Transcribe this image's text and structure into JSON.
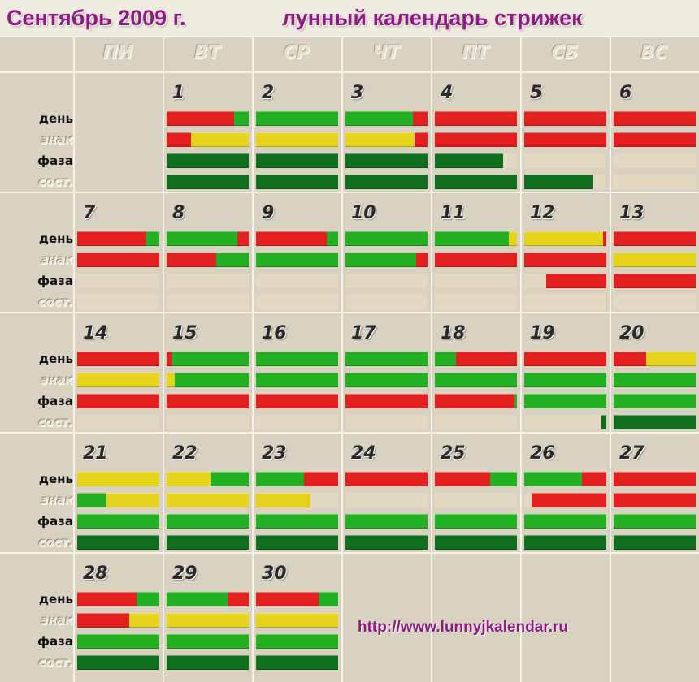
{
  "title": {
    "month": "Сентябрь 2009 г.",
    "subtitle": "лунный календарь стрижек"
  },
  "weekdays": [
    "ПН",
    "ВТ",
    "СР",
    "ЧТ",
    "ПТ",
    "СБ",
    "ВС"
  ],
  "row_labels": {
    "day": "день",
    "sign": "знак",
    "phase": "фаза",
    "state": "сост."
  },
  "colors": {
    "red": "#e32020",
    "yellow": "#e6d41c",
    "green": "#23b023",
    "dgreen": "#106f1f",
    "beige": "#e3d9c3"
  },
  "weeks": [
    {
      "days": [
        null,
        {
          "num": "1",
          "day": [
            [
              "red",
              0.82
            ],
            [
              "green",
              0.18
            ]
          ],
          "sign": [
            [
              "red",
              0.3
            ],
            [
              "yellow",
              0.7
            ]
          ],
          "phase": [
            [
              "dgreen",
              1
            ]
          ],
          "state": [
            [
              "dgreen",
              1
            ]
          ]
        },
        {
          "num": "2",
          "day": [
            [
              "green",
              1
            ]
          ],
          "sign": [
            [
              "yellow",
              1
            ]
          ],
          "phase": [
            [
              "dgreen",
              1
            ]
          ],
          "state": [
            [
              "dgreen",
              1
            ]
          ]
        },
        {
          "num": "3",
          "day": [
            [
              "green",
              0.82
            ],
            [
              "red",
              0.18
            ]
          ],
          "sign": [
            [
              "yellow",
              0.84
            ],
            [
              "red",
              0.16
            ]
          ],
          "phase": [
            [
              "dgreen",
              1
            ]
          ],
          "state": [
            [
              "dgreen",
              1
            ]
          ]
        },
        {
          "num": "4",
          "day": [
            [
              "red",
              1
            ]
          ],
          "sign": [
            [
              "red",
              1
            ]
          ],
          "phase": [
            [
              "dgreen",
              0.83
            ],
            [
              "beige",
              0.17
            ]
          ],
          "state": [
            [
              "dgreen",
              1
            ]
          ]
        },
        {
          "num": "5",
          "day": [
            [
              "red",
              1
            ]
          ],
          "sign": [
            [
              "red",
              1
            ]
          ],
          "phase": [
            [
              "beige",
              1
            ]
          ],
          "state": [
            [
              "dgreen",
              0.83
            ],
            [
              "beige",
              0.17
            ]
          ]
        },
        {
          "num": "6",
          "day": [
            [
              "red",
              1
            ]
          ],
          "sign": [
            [
              "red",
              1
            ]
          ],
          "phase": [
            [
              "beige",
              1
            ]
          ],
          "state": [
            [
              "beige",
              1
            ]
          ]
        }
      ]
    },
    {
      "days": [
        {
          "num": "7",
          "day": [
            [
              "red",
              0.84
            ],
            [
              "green",
              0.16
            ]
          ],
          "sign": [
            [
              "red",
              1
            ]
          ],
          "phase": [
            [
              "beige",
              1
            ]
          ],
          "state": [
            [
              "beige",
              1
            ]
          ]
        },
        {
          "num": "8",
          "day": [
            [
              "green",
              0.86
            ],
            [
              "red",
              0.14
            ]
          ],
          "sign": [
            [
              "red",
              0.6
            ],
            [
              "green",
              0.4
            ]
          ],
          "phase": [
            [
              "beige",
              1
            ]
          ],
          "state": [
            [
              "beige",
              1
            ]
          ]
        },
        {
          "num": "9",
          "day": [
            [
              "red",
              0.86
            ],
            [
              "green",
              0.14
            ]
          ],
          "sign": [
            [
              "green",
              1
            ]
          ],
          "phase": [
            [
              "beige",
              1
            ]
          ],
          "state": [
            [
              "beige",
              1
            ]
          ]
        },
        {
          "num": "10",
          "day": [
            [
              "green",
              1
            ]
          ],
          "sign": [
            [
              "green",
              0.86
            ],
            [
              "red",
              0.14
            ]
          ],
          "phase": [
            [
              "beige",
              1
            ]
          ],
          "state": [
            [
              "beige",
              1
            ]
          ]
        },
        {
          "num": "11",
          "day": [
            [
              "green",
              0.9
            ],
            [
              "yellow",
              0.1
            ]
          ],
          "sign": [
            [
              "red",
              1
            ]
          ],
          "phase": [
            [
              "beige",
              1
            ]
          ],
          "state": [
            [
              "beige",
              1
            ]
          ]
        },
        {
          "num": "12",
          "day": [
            [
              "yellow",
              0.96
            ],
            [
              "red",
              0.04
            ]
          ],
          "sign": [
            [
              "red",
              1
            ]
          ],
          "phase": [
            [
              "beige",
              0.27
            ],
            [
              "red",
              0.73
            ]
          ],
          "state": [
            [
              "beige",
              1
            ]
          ]
        },
        {
          "num": "13",
          "day": [
            [
              "red",
              1
            ]
          ],
          "sign": [
            [
              "yellow",
              1
            ]
          ],
          "phase": [
            [
              "red",
              1
            ]
          ],
          "state": [
            [
              "beige",
              1
            ]
          ]
        }
      ]
    },
    {
      "days": [
        {
          "num": "14",
          "day": [
            [
              "red",
              1
            ]
          ],
          "sign": [
            [
              "yellow",
              1
            ]
          ],
          "phase": [
            [
              "red",
              1
            ]
          ],
          "state": [
            [
              "beige",
              1
            ]
          ]
        },
        {
          "num": "15",
          "day": [
            [
              "red",
              0.07
            ],
            [
              "green",
              0.93
            ]
          ],
          "sign": [
            [
              "yellow",
              0.1
            ],
            [
              "green",
              0.9
            ]
          ],
          "phase": [
            [
              "red",
              1
            ]
          ],
          "state": [
            [
              "beige",
              1
            ]
          ]
        },
        {
          "num": "16",
          "day": [
            [
              "green",
              1
            ]
          ],
          "sign": [
            [
              "green",
              1
            ]
          ],
          "phase": [
            [
              "red",
              1
            ]
          ],
          "state": [
            [
              "beige",
              1
            ]
          ]
        },
        {
          "num": "17",
          "day": [
            [
              "green",
              1
            ]
          ],
          "sign": [
            [
              "green",
              1
            ]
          ],
          "phase": [
            [
              "red",
              1
            ]
          ],
          "state": [
            [
              "beige",
              1
            ]
          ]
        },
        {
          "num": "18",
          "day": [
            [
              "green",
              0.26
            ],
            [
              "red",
              0.74
            ]
          ],
          "sign": [
            [
              "green",
              1
            ]
          ],
          "phase": [
            [
              "red",
              0.97
            ],
            [
              "green",
              0.03
            ]
          ],
          "state": [
            [
              "beige",
              1
            ]
          ]
        },
        {
          "num": "19",
          "day": [
            [
              "red",
              1
            ]
          ],
          "sign": [
            [
              "green",
              1
            ]
          ],
          "phase": [
            [
              "green",
              1
            ]
          ],
          "state": [
            [
              "beige",
              0.94
            ],
            [
              "dgreen",
              0.06
            ]
          ]
        },
        {
          "num": "20",
          "day": [
            [
              "red",
              0.4
            ],
            [
              "yellow",
              0.6
            ]
          ],
          "sign": [
            [
              "green",
              1
            ]
          ],
          "phase": [
            [
              "green",
              1
            ]
          ],
          "state": [
            [
              "dgreen",
              1
            ]
          ]
        }
      ]
    },
    {
      "days": [
        {
          "num": "21",
          "day": [
            [
              "yellow",
              1
            ]
          ],
          "sign": [
            [
              "green",
              0.36
            ],
            [
              "yellow",
              0.64
            ]
          ],
          "phase": [
            [
              "green",
              1
            ]
          ],
          "state": [
            [
              "dgreen",
              1
            ]
          ]
        },
        {
          "num": "22",
          "day": [
            [
              "yellow",
              0.53
            ],
            [
              "green",
              0.47
            ]
          ],
          "sign": [
            [
              "yellow",
              1
            ]
          ],
          "phase": [
            [
              "green",
              1
            ]
          ],
          "state": [
            [
              "dgreen",
              1
            ]
          ]
        },
        {
          "num": "23",
          "day": [
            [
              "green",
              0.58
            ],
            [
              "red",
              0.42
            ]
          ],
          "sign": [
            [
              "yellow",
              0.66
            ],
            [
              "beige",
              0.34
            ]
          ],
          "phase": [
            [
              "green",
              1
            ]
          ],
          "state": [
            [
              "dgreen",
              1
            ]
          ]
        },
        {
          "num": "24",
          "day": [
            [
              "red",
              1
            ]
          ],
          "sign": [
            [
              "beige",
              1
            ]
          ],
          "phase": [
            [
              "green",
              1
            ]
          ],
          "state": [
            [
              "dgreen",
              1
            ]
          ]
        },
        {
          "num": "25",
          "day": [
            [
              "red",
              0.67
            ],
            [
              "green",
              0.33
            ]
          ],
          "sign": [
            [
              "beige",
              1
            ]
          ],
          "phase": [
            [
              "green",
              1
            ]
          ],
          "state": [
            [
              "dgreen",
              1
            ]
          ]
        },
        {
          "num": "26",
          "day": [
            [
              "green",
              0.7
            ],
            [
              "red",
              0.3
            ]
          ],
          "sign": [
            [
              "beige",
              0.09
            ],
            [
              "red",
              0.91
            ]
          ],
          "phase": [
            [
              "green",
              1
            ]
          ],
          "state": [
            [
              "dgreen",
              1
            ]
          ]
        },
        {
          "num": "27",
          "day": [
            [
              "red",
              1
            ]
          ],
          "sign": [
            [
              "red",
              1
            ]
          ],
          "phase": [
            [
              "green",
              1
            ]
          ],
          "state": [
            [
              "dgreen",
              1
            ]
          ]
        }
      ]
    },
    {
      "days": [
        {
          "num": "28",
          "day": [
            [
              "red",
              0.72
            ],
            [
              "green",
              0.28
            ]
          ],
          "sign": [
            [
              "red",
              0.63
            ],
            [
              "yellow",
              0.37
            ]
          ],
          "phase": [
            [
              "green",
              1
            ]
          ],
          "state": [
            [
              "dgreen",
              1
            ]
          ]
        },
        {
          "num": "29",
          "day": [
            [
              "green",
              0.74
            ],
            [
              "red",
              0.26
            ]
          ],
          "sign": [
            [
              "yellow",
              1
            ]
          ],
          "phase": [
            [
              "green",
              1
            ]
          ],
          "state": [
            [
              "dgreen",
              1
            ]
          ]
        },
        {
          "num": "30",
          "day": [
            [
              "red",
              0.76
            ],
            [
              "green",
              0.24
            ]
          ],
          "sign": [
            [
              "yellow",
              1
            ]
          ],
          "phase": [
            [
              "green",
              1
            ]
          ],
          "state": [
            [
              "dgreen",
              1
            ]
          ]
        },
        null,
        null,
        null,
        null
      ]
    }
  ],
  "url": "http://www.lunnyjkalendar.ru"
}
